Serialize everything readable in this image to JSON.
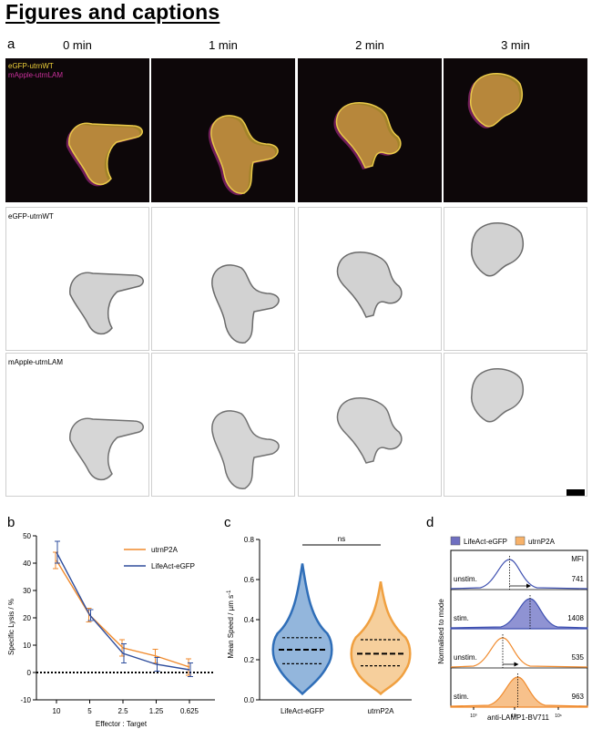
{
  "heading": "Figures and captions",
  "panel_a": {
    "label": "a",
    "time_labels": [
      "0 min",
      "1 min",
      "2 min",
      "3 min"
    ],
    "row_labels": {
      "merge_line1": "eGFP-utrnWT",
      "merge_line2": "mApple-utrnLAM",
      "green": "eGFP-utrnWT",
      "red": "mApple-utrnLAM"
    },
    "colors": {
      "yellow": "#f0d23a",
      "magenta": "#c8309a",
      "dark_bg": "#0d0709"
    }
  },
  "chart_data": [
    {
      "panel": "b",
      "type": "line",
      "ylabel": "Specific Lysis / %",
      "xlabel": "Effector : Target",
      "categories": [
        "10",
        "5",
        "2.5",
        "1.25",
        "0.625"
      ],
      "ylim": [
        -10,
        50
      ],
      "yticks": [
        -10,
        0,
        10,
        20,
        30,
        40,
        50
      ],
      "series": [
        {
          "name": "utrnP2A",
          "color": "#f08a2c",
          "values": [
            41,
            21,
            9,
            6,
            2
          ],
          "errors": [
            3,
            2.5,
            3,
            2.5,
            3
          ]
        },
        {
          "name": "LifeAct-eGFP",
          "color": "#2e4d9c",
          "values": [
            44,
            21,
            7,
            3,
            1
          ],
          "errors": [
            4,
            2,
            3.5,
            2.5,
            2.5
          ]
        }
      ],
      "baseline": 0
    },
    {
      "panel": "c",
      "type": "violin",
      "ylabel": "Mean Speed / µm s",
      "ylabel_sup": "-1",
      "categories": [
        "LifeAct-eGFP",
        "utrnP2A"
      ],
      "ylim": [
        0,
        0.8
      ],
      "yticks": [
        "0.0",
        "0.2",
        "0.4",
        "0.6",
        "0.8"
      ],
      "significance": "ns",
      "series": [
        {
          "name": "LifeAct-eGFP",
          "color": "#2f6eb8",
          "fill": "#93b6dc",
          "quartiles": [
            0.18,
            0.25,
            0.31
          ],
          "range": [
            0.03,
            0.68
          ]
        },
        {
          "name": "utrnP2A",
          "color": "#f0a040",
          "fill": "#f6cf9c",
          "quartiles": [
            0.17,
            0.23,
            0.3
          ],
          "range": [
            0.03,
            0.59
          ]
        }
      ]
    },
    {
      "panel": "d",
      "type": "area",
      "legend": [
        {
          "name": "LifeAct-eGFP",
          "color": "#6f6fc0"
        },
        {
          "name": "utrnP2A",
          "color": "#f7b26a"
        }
      ],
      "ylabel": "Normalised to mode",
      "xlabel": "anti-LAMP1-BV711",
      "xticks": [
        "10⁰",
        "10⁵",
        "10⁶"
      ],
      "mfi_header": "MFI",
      "rows": [
        {
          "label": "unstim.",
          "mfi": "741",
          "style": "outline",
          "color": "#3d4fb0"
        },
        {
          "label": "stim.",
          "mfi": "1408",
          "style": "filled",
          "color": "#3d4fb0",
          "fill": "#8f93d3"
        },
        {
          "label": "unstim.",
          "mfi": "535",
          "style": "outline",
          "color": "#f08a2c"
        },
        {
          "label": "stim.",
          "mfi": "963",
          "style": "filled",
          "color": "#f08a2c",
          "fill": "#f7c18b"
        }
      ]
    }
  ]
}
